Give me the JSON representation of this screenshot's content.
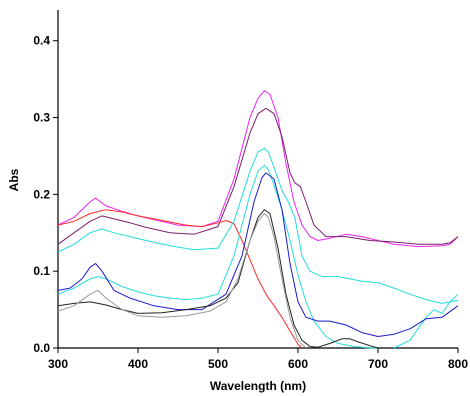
{
  "chart_data": {
    "type": "line",
    "title": "",
    "xlabel": "Wavelength (nm)",
    "ylabel": "Abs",
    "xlim": [
      300,
      800
    ],
    "ylim": [
      0,
      0.44
    ],
    "xticks": [
      300,
      400,
      500,
      600,
      700,
      800
    ],
    "xtick_labels": [
      "300",
      "400",
      "500",
      "600",
      "700",
      "800"
    ],
    "yticks": [
      0.0,
      0.1,
      0.2,
      0.3,
      0.4
    ],
    "ytick_labels": [
      "0.0",
      "0.1",
      "0.2",
      "0.3",
      "0.4"
    ],
    "grid": false,
    "series": [
      {
        "color": "#ee22ee",
        "x": [
          300,
          320,
          340,
          347,
          360,
          380,
          400,
          420,
          450,
          480,
          500,
          520,
          540,
          550,
          558,
          565,
          575,
          585,
          595,
          605,
          615,
          625,
          640,
          660,
          680,
          700,
          720,
          750,
          780,
          790,
          800
        ],
        "y": [
          0.16,
          0.17,
          0.19,
          0.195,
          0.185,
          0.178,
          0.172,
          0.167,
          0.16,
          0.158,
          0.165,
          0.22,
          0.3,
          0.325,
          0.335,
          0.33,
          0.3,
          0.24,
          0.19,
          0.16,
          0.145,
          0.14,
          0.143,
          0.148,
          0.145,
          0.14,
          0.135,
          0.132,
          0.133,
          0.135,
          0.145
        ]
      },
      {
        "color": "#7a1e6e",
        "x": [
          300,
          320,
          340,
          355,
          370,
          390,
          410,
          440,
          470,
          500,
          520,
          540,
          550,
          560,
          570,
          580,
          590,
          596,
          603,
          610,
          620,
          635,
          660,
          690,
          720,
          750,
          780,
          790,
          800
        ],
        "y": [
          0.135,
          0.15,
          0.165,
          0.172,
          0.168,
          0.163,
          0.157,
          0.15,
          0.148,
          0.158,
          0.21,
          0.28,
          0.305,
          0.312,
          0.305,
          0.275,
          0.228,
          0.215,
          0.21,
          0.19,
          0.16,
          0.145,
          0.145,
          0.14,
          0.138,
          0.135,
          0.135,
          0.137,
          0.145
        ]
      },
      {
        "color": "#ff2a2a",
        "x": [
          300,
          320,
          340,
          360,
          380,
          400,
          420,
          440,
          460,
          480,
          500,
          510,
          520,
          530,
          540,
          550,
          560,
          570,
          580,
          590,
          600,
          605
        ],
        "y": [
          0.16,
          0.165,
          0.175,
          0.18,
          0.177,
          0.172,
          0.168,
          0.164,
          0.16,
          0.158,
          0.163,
          0.166,
          0.162,
          0.14,
          0.115,
          0.09,
          0.07,
          0.055,
          0.04,
          0.022,
          0.005,
          0.0
        ]
      },
      {
        "color": "#22dddd",
        "x": [
          300,
          320,
          340,
          355,
          370,
          390,
          410,
          440,
          470,
          500,
          520,
          540,
          550,
          558,
          563,
          570,
          580,
          588,
          596,
          605,
          615,
          630,
          650,
          680,
          700,
          720,
          740,
          760,
          780,
          790,
          800
        ],
        "y": [
          0.125,
          0.135,
          0.15,
          0.155,
          0.15,
          0.145,
          0.14,
          0.133,
          0.128,
          0.13,
          0.165,
          0.23,
          0.255,
          0.26,
          0.255,
          0.235,
          0.205,
          0.19,
          0.17,
          0.12,
          0.1,
          0.093,
          0.093,
          0.087,
          0.085,
          0.078,
          0.07,
          0.063,
          0.058,
          0.06,
          0.062
        ]
      },
      {
        "color": "#22dddd",
        "x": [
          300,
          320,
          340,
          350,
          360,
          380,
          400,
          420,
          440,
          460,
          480,
          500,
          520,
          540,
          550,
          558,
          563,
          570,
          580,
          590,
          600,
          610,
          620,
          635,
          650,
          670,
          690,
          700
        ],
        "y": [
          0.07,
          0.078,
          0.09,
          0.093,
          0.09,
          0.08,
          0.073,
          0.068,
          0.065,
          0.063,
          0.065,
          0.07,
          0.12,
          0.2,
          0.23,
          0.238,
          0.232,
          0.212,
          0.18,
          0.14,
          0.095,
          0.06,
          0.035,
          0.015,
          0.006,
          0.002,
          0.0,
          0.0
        ]
      },
      {
        "color": "#22dddd",
        "x": [
          720,
          740,
          760,
          770,
          780,
          790,
          800
        ],
        "y": [
          0.0,
          0.01,
          0.04,
          0.05,
          0.045,
          0.06,
          0.07
        ]
      },
      {
        "color": "#1a1acc",
        "x": [
          300,
          315,
          330,
          340,
          347,
          355,
          370,
          390,
          420,
          450,
          480,
          510,
          530,
          545,
          555,
          560,
          570,
          580,
          590,
          600,
          610,
          625,
          640,
          660,
          680,
          700,
          720,
          740,
          760,
          780,
          800
        ],
        "y": [
          0.075,
          0.078,
          0.09,
          0.105,
          0.11,
          0.1,
          0.075,
          0.065,
          0.055,
          0.05,
          0.05,
          0.07,
          0.12,
          0.19,
          0.222,
          0.228,
          0.22,
          0.18,
          0.11,
          0.06,
          0.04,
          0.035,
          0.035,
          0.03,
          0.02,
          0.015,
          0.018,
          0.025,
          0.038,
          0.04,
          0.055
        ]
      },
      {
        "color": "#222222",
        "x": [
          300,
          320,
          340,
          350,
          360,
          380,
          400,
          430,
          460,
          490,
          510,
          525,
          540,
          550,
          558,
          565,
          575,
          585,
          595,
          605,
          615,
          625,
          640,
          655,
          665,
          675,
          690,
          700
        ],
        "y": [
          0.055,
          0.058,
          0.06,
          0.058,
          0.056,
          0.05,
          0.045,
          0.046,
          0.05,
          0.055,
          0.065,
          0.085,
          0.14,
          0.17,
          0.18,
          0.175,
          0.13,
          0.07,
          0.03,
          0.01,
          0.002,
          0.001,
          0.006,
          0.012,
          0.012,
          0.008,
          0.003,
          0.0
        ]
      },
      {
        "color": "#999999",
        "x": [
          300,
          320,
          340,
          350,
          360,
          380,
          400,
          430,
          460,
          490,
          510,
          525,
          540,
          550,
          558,
          563,
          570,
          580,
          590,
          600,
          610
        ],
        "y": [
          0.048,
          0.055,
          0.07,
          0.075,
          0.065,
          0.05,
          0.042,
          0.04,
          0.042,
          0.048,
          0.06,
          0.09,
          0.14,
          0.165,
          0.175,
          0.17,
          0.145,
          0.09,
          0.04,
          0.01,
          0.0
        ]
      }
    ]
  }
}
